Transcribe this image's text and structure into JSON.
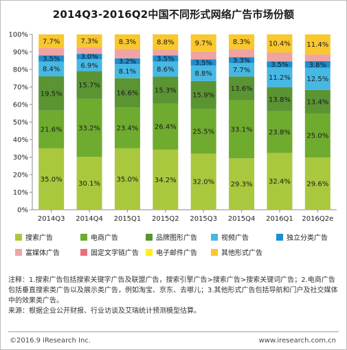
{
  "chart_data": {
    "type": "bar",
    "stacked": true,
    "percent": true,
    "title": "2014Q3-2016Q2中国不同形式网络广告市场份额",
    "categories": [
      "2014Q3",
      "2014Q4",
      "2015Q1",
      "2015Q2",
      "2015Q3",
      "2015Q4",
      "2016Q1",
      "2016Q2e"
    ],
    "ylim": [
      0,
      100
    ],
    "yticks": [
      "0%",
      "10%",
      "20%",
      "30%",
      "40%",
      "50%",
      "60%",
      "70%",
      "80%",
      "90%",
      "100%"
    ],
    "grid": false,
    "legend_position": "bottom",
    "series": [
      {
        "name": "搜索广告",
        "color": "#aac83d",
        "values": [
          35.0,
          30.1,
          35.0,
          34.2,
          32.0,
          29.3,
          32.4,
          29.6
        ]
      },
      {
        "name": "电商广告",
        "color": "#6fab2e",
        "values": [
          21.6,
          33.2,
          23.4,
          26.4,
          25.5,
          33.1,
          23.8,
          25.0
        ]
      },
      {
        "name": "品牌图形广告",
        "color": "#5a9433",
        "values": [
          19.5,
          15.7,
          16.6,
          15.3,
          15.9,
          13.6,
          13.8,
          13.4
        ]
      },
      {
        "name": "视频广告",
        "color": "#47b8e3",
        "values": [
          8.4,
          6.9,
          8.1,
          8.6,
          8.8,
          7.7,
          11.2,
          12.5
        ]
      },
      {
        "name": "独立分类广告",
        "color": "#1d8fcf",
        "values": [
          3.5,
          3.0,
          3.2,
          3.5,
          3.5,
          3.3,
          3.5,
          3.8
        ]
      },
      {
        "name": "富媒体广告",
        "color": "#f0a3a3",
        "values": [
          4.3,
          3.8,
          5.4,
          3.2,
          4.6,
          4.7,
          5.0,
          3.8
        ]
      },
      {
        "name": "固定文字链广告",
        "color": "#eb6f7a",
        "values": [
          0,
          0,
          0,
          0,
          0,
          0,
          0,
          0
        ]
      },
      {
        "name": "电子邮件广告",
        "color": "#fff01a",
        "values": [
          0,
          0,
          0,
          0,
          0,
          0,
          0,
          0
        ]
      },
      {
        "name": "其他形式广告",
        "color": "#f9c72e",
        "values": [
          7.7,
          7.3,
          8.3,
          8.8,
          9.7,
          8.3,
          10.4,
          11.4
        ]
      }
    ],
    "labeled_series": [
      0,
      1,
      2,
      3,
      4,
      8
    ],
    "value_labels": [
      [
        "35.0%",
        "30.1%",
        "35.0%",
        "34.2%",
        "32.0%",
        "29.3%",
        "32.4%",
        "29.6%"
      ],
      [
        "21.6%",
        "33.2%",
        "23.4%",
        "26.4%",
        "25.5%",
        "33.1%",
        "23.8%",
        "25.0%"
      ],
      [
        "19.5%",
        "15.7%",
        "16.6%",
        "15.3%",
        "15.9%",
        "13.6%",
        "13.8%",
        "13.4%"
      ],
      [
        "8.4%",
        "6.9%",
        "8.1%",
        "8.6%",
        "8.8%",
        "7.7%",
        "11.2%",
        "12.5%"
      ],
      [
        "3.5%",
        "3.0%",
        "3.2%",
        "3.5%",
        "3.5%",
        "3.3%",
        "3.5%",
        "3.8%"
      ],
      [],
      [],
      [],
      [
        "7.7%",
        "7.3%",
        "8.3%",
        "8.8%",
        "9.7%",
        "8.3%",
        "10.4%",
        "11.4%"
      ]
    ]
  },
  "notes": {
    "line1": "注释：1.搜索广告包括搜索关键字广告及联盟广告，搜索引擎广告>搜索广告>搜索关键词广告；2.电商广告包括垂直搜索类广告以及展示类广告，例如淘宝、京东、去哪儿；3.其他形式广告包括导航和门户及社交媒体中的效果类广告。",
    "line2": "来源：根据企业公开财报、行业访谈及艾瑞统计预测模型估算。"
  },
  "footer": {
    "left": "©2016.9 iResearch Inc.",
    "right": "www.iresearch.com.cn"
  }
}
